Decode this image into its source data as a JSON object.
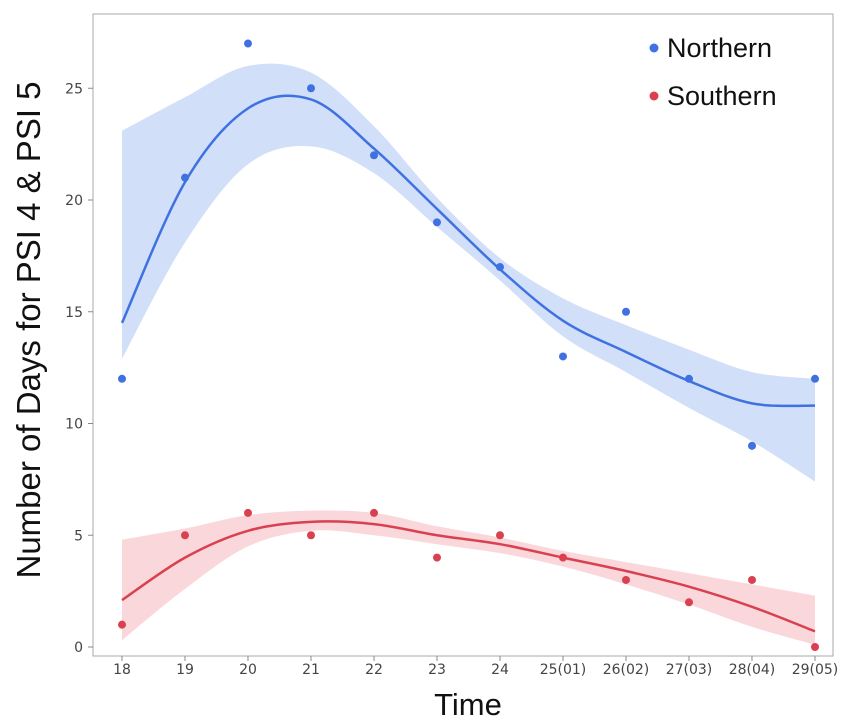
{
  "chart_data": {
    "type": "scatter",
    "xlabel": "Time",
    "ylabel": "Number of Days for PSI 4 & PSI 5",
    "categories": [
      "18",
      "19",
      "20",
      "21",
      "22",
      "23",
      "24",
      "25(01)",
      "26(02)",
      "27(03)",
      "28(04)",
      "29(05)"
    ],
    "ylim": [
      0,
      27.5
    ],
    "yticks": [
      0,
      5,
      10,
      15,
      20,
      25
    ],
    "grid": false,
    "legend_position": "top-right",
    "series": [
      {
        "name": "Northern",
        "color": "#3F72E0",
        "band_color": "#C9D9F8",
        "values": [
          12,
          21,
          27,
          25,
          22,
          19,
          17,
          13,
          15,
          12,
          9,
          12
        ],
        "fit": [
          14.5,
          20.8,
          24.1,
          24.5,
          22.3,
          19.6,
          16.9,
          14.6,
          13.2,
          11.9,
          10.9,
          10.8
        ],
        "band_upper": [
          23.1,
          24.6,
          26.0,
          25.7,
          23.3,
          20.1,
          17.4,
          15.6,
          14.4,
          13.3,
          12.3,
          12.0
        ],
        "band_lower": [
          12.9,
          18.1,
          21.6,
          22.4,
          21.2,
          18.8,
          16.4,
          13.9,
          12.3,
          10.7,
          9.2,
          7.4
        ]
      },
      {
        "name": "Southern",
        "color": "#D94150",
        "band_color": "#F9D0D5",
        "values": [
          1,
          5,
          6,
          5,
          6,
          4,
          5,
          4,
          3,
          2,
          3,
          0
        ],
        "fit": [
          2.1,
          4.0,
          5.2,
          5.6,
          5.5,
          5.0,
          4.6,
          4.0,
          3.4,
          2.7,
          1.8,
          0.7
        ],
        "band_upper": [
          4.8,
          5.3,
          5.9,
          6.1,
          6.0,
          5.4,
          4.9,
          4.3,
          3.8,
          3.3,
          2.8,
          2.3
        ],
        "band_lower": [
          0.3,
          2.6,
          4.5,
          5.2,
          5.0,
          4.6,
          4.2,
          3.6,
          2.8,
          1.9,
          0.9,
          0.1
        ]
      }
    ]
  }
}
